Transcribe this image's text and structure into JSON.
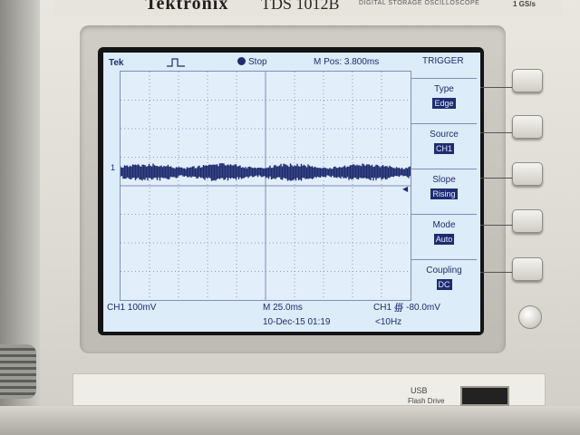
{
  "device": {
    "brand": "Tektronix",
    "model": "TDS 1012B",
    "model_subtitle": "DIGITAL STORAGE OSCILLOSCOPE",
    "sample_rate": "1 GS/s",
    "usb_label": "USB",
    "usb_sublabel": "Flash Drive"
  },
  "screen": {
    "logo": "Tek",
    "acq_state": "Stop",
    "m_pos": "M Pos: 3.800ms",
    "ch1_marker": "1",
    "menu_title": "TRIGGER",
    "menu": [
      {
        "label": "Type",
        "value": "Edge"
      },
      {
        "label": "Source",
        "value": "CH1"
      },
      {
        "label": "Slope",
        "value": "Rising"
      },
      {
        "label": "Mode",
        "value": "Auto"
      },
      {
        "label": "Coupling",
        "value": "DC"
      }
    ],
    "footer": {
      "ch1_scale": "CH1  100mV",
      "timebase": "M 25.0ms",
      "trigger": "CH1 ∰ -80.0mV",
      "date": "10-Dec-15 01:19",
      "freq": "<10Hz"
    }
  },
  "colors": {
    "screen_bg": "#dcecf8",
    "trace": "#1e2c70",
    "case": "#e2e0d9"
  },
  "icons": [
    "stop-dot-icon",
    "pulse-edge-icon",
    "trigger-position-icon",
    "trigger-level-arrow-icon"
  ]
}
